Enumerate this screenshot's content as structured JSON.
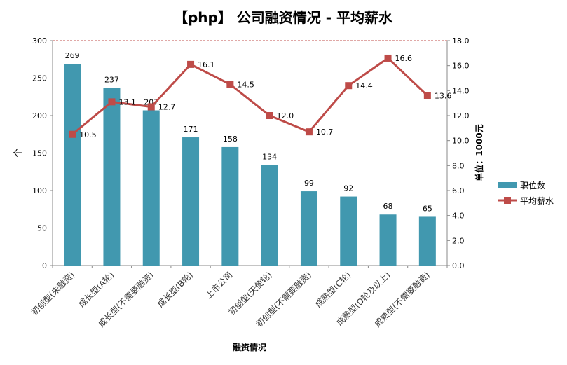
{
  "chart_data": {
    "type": "bar+line",
    "title": "【php】 公司融资情况 - 平均薪水",
    "xlabel": "融资情况",
    "ylabel": "个",
    "y2label": "单位：1000元",
    "categories": [
      "初创型(未融资)",
      "成长型(A轮)",
      "成长型(不需要融资)",
      "成长型(B轮)",
      "上市公司",
      "初创型(天使轮)",
      "初创型(不需要融资)",
      "成熟型(C轮)",
      "成熟型(D轮及以上)",
      "成熟型(不需要融资)"
    ],
    "series": [
      {
        "name": "职位数",
        "type": "bar",
        "axis": "left",
        "color": "#4198AF",
        "values": [
          269,
          237,
          207,
          171,
          158,
          134,
          99,
          92,
          68,
          65
        ],
        "labels": [
          "269",
          "237",
          "207",
          "171",
          "158",
          "134",
          "99",
          "92",
          "68",
          "65"
        ]
      },
      {
        "name": "平均薪水",
        "type": "line",
        "axis": "right",
        "color": "#BE4B48",
        "values": [
          10.5,
          13.1,
          12.7,
          16.1,
          14.5,
          12.0,
          10.7,
          14.4,
          16.6,
          13.6
        ],
        "labels": [
          "10.5",
          "13.1",
          "12.7",
          "16.1",
          "14.5",
          "12.0",
          "10.7",
          "14.4",
          "16.6",
          "13.6"
        ]
      }
    ],
    "ylim": [
      0,
      300
    ],
    "yticks": [
      "0",
      "50",
      "100",
      "150",
      "200",
      "250",
      "300"
    ],
    "y2lim": [
      0,
      18
    ],
    "y2ticks": [
      "0.0",
      "2.0",
      "4.0",
      "6.0",
      "8.0",
      "10.0",
      "12.0",
      "14.0",
      "16.0",
      "18.0"
    ],
    "legend": "right",
    "grid": false
  }
}
